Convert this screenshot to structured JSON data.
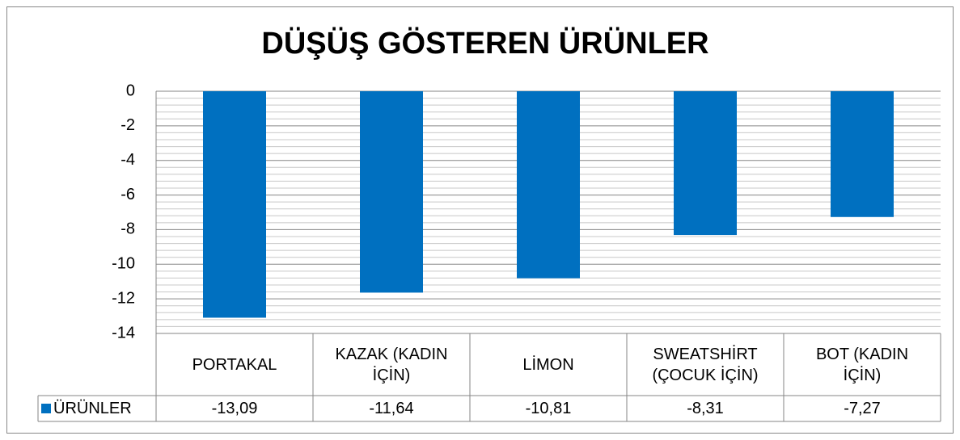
{
  "chart_data": {
    "type": "bar",
    "title": "DÜŞÜŞ GÖSTEREN ÜRÜNLER",
    "categories": [
      "PORTAKAL",
      "KAZAK (KADIN İÇİN)",
      "LİMON",
      "SWEATSHİRT (ÇOCUK İÇİN)",
      "BOT (KADIN İÇİN)"
    ],
    "series": [
      {
        "name": "ÜRÜNLER",
        "color": "#0070c0",
        "values": [
          -13.09,
          -11.64,
          -10.81,
          -8.31,
          -7.27
        ],
        "value_labels": [
          "-13,09",
          "-11,64",
          "-10,81",
          "-8,31",
          "-7,27"
        ]
      }
    ],
    "ylim": [
      -14,
      0
    ],
    "yticks": [
      0,
      -2,
      -4,
      -6,
      -8,
      -10,
      -12,
      -14
    ],
    "minor_yticks": [
      -0.4,
      -0.8,
      -1.2,
      -1.6,
      -2.4,
      -2.8,
      -3.2,
      -3.6,
      -4.4,
      -4.8,
      -5.2,
      -5.6,
      -6.4,
      -6.8,
      -7.2,
      -7.6,
      -8.4,
      -8.8,
      -9.2,
      -9.6,
      -10.4,
      -10.8,
      -11.2,
      -11.6,
      -12.4,
      -12.8,
      -13.2,
      -13.6
    ],
    "grid": true
  }
}
